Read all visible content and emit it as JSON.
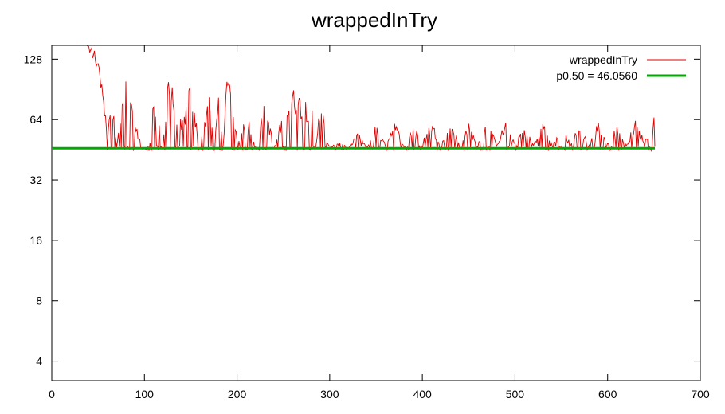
{
  "chart_data": {
    "type": "line",
    "title": "wrappedInTry",
    "xlabel": "",
    "ylabel": "",
    "x_scale": "linear",
    "y_scale": "log2",
    "xlim": [
      0,
      700
    ],
    "ylim": [
      3.2,
      150
    ],
    "x_ticks": [
      0,
      100,
      200,
      300,
      400,
      500,
      600,
      700
    ],
    "y_ticks": [
      4,
      8,
      16,
      32,
      64,
      128
    ],
    "grid": false,
    "legend_position": "top-right",
    "series": [
      {
        "name": "wrappedInTry",
        "color": "#dd0000",
        "x_start": 0,
        "x_end": 651,
        "description_points": [
          [
            38,
            150
          ],
          [
            45,
            140
          ],
          [
            50,
            120
          ],
          [
            55,
            90
          ],
          [
            60,
            55
          ],
          [
            65,
            80
          ],
          [
            70,
            48
          ],
          [
            75,
            70
          ],
          [
            80,
            100
          ],
          [
            90,
            60
          ],
          [
            100,
            46
          ],
          [
            105,
            44
          ],
          [
            110,
            85
          ],
          [
            120,
            46
          ],
          [
            125,
            110
          ],
          [
            130,
            90
          ],
          [
            140,
            60
          ],
          [
            150,
            95
          ],
          [
            160,
            46
          ],
          [
            170,
            90
          ],
          [
            175,
            44
          ],
          [
            180,
            85
          ],
          [
            185,
            45
          ],
          [
            190,
            130
          ],
          [
            195,
            80
          ],
          [
            200,
            50
          ],
          [
            210,
            70
          ],
          [
            220,
            46
          ],
          [
            230,
            80
          ],
          [
            240,
            46
          ],
          [
            250,
            70
          ],
          [
            260,
            88
          ],
          [
            270,
            80
          ],
          [
            280,
            78
          ],
          [
            285,
            46
          ],
          [
            290,
            90
          ],
          [
            295,
            55
          ],
          [
            300,
            46
          ],
          [
            310,
            50
          ],
          [
            320,
            46
          ],
          [
            330,
            55
          ],
          [
            340,
            47
          ],
          [
            350,
            60
          ],
          [
            360,
            48
          ],
          [
            370,
            62
          ],
          [
            380,
            48
          ],
          [
            390,
            60
          ],
          [
            400,
            50
          ],
          [
            410,
            62
          ],
          [
            420,
            48
          ],
          [
            430,
            65
          ],
          [
            440,
            49
          ],
          [
            450,
            60
          ],
          [
            460,
            48
          ],
          [
            470,
            65
          ],
          [
            480,
            48
          ],
          [
            490,
            62
          ],
          [
            500,
            49
          ],
          [
            510,
            60
          ],
          [
            520,
            48
          ],
          [
            530,
            63
          ],
          [
            540,
            48
          ],
          [
            550,
            58
          ],
          [
            560,
            49
          ],
          [
            570,
            60
          ],
          [
            580,
            48
          ],
          [
            590,
            62
          ],
          [
            600,
            49
          ],
          [
            610,
            60
          ],
          [
            620,
            48
          ],
          [
            630,
            62
          ],
          [
            640,
            50
          ],
          [
            651,
            68
          ]
        ]
      },
      {
        "name": "p0.50 = 46.0560",
        "color": "#00aa00",
        "x_start": 0,
        "x_end": 651,
        "value": 46.056
      }
    ]
  }
}
